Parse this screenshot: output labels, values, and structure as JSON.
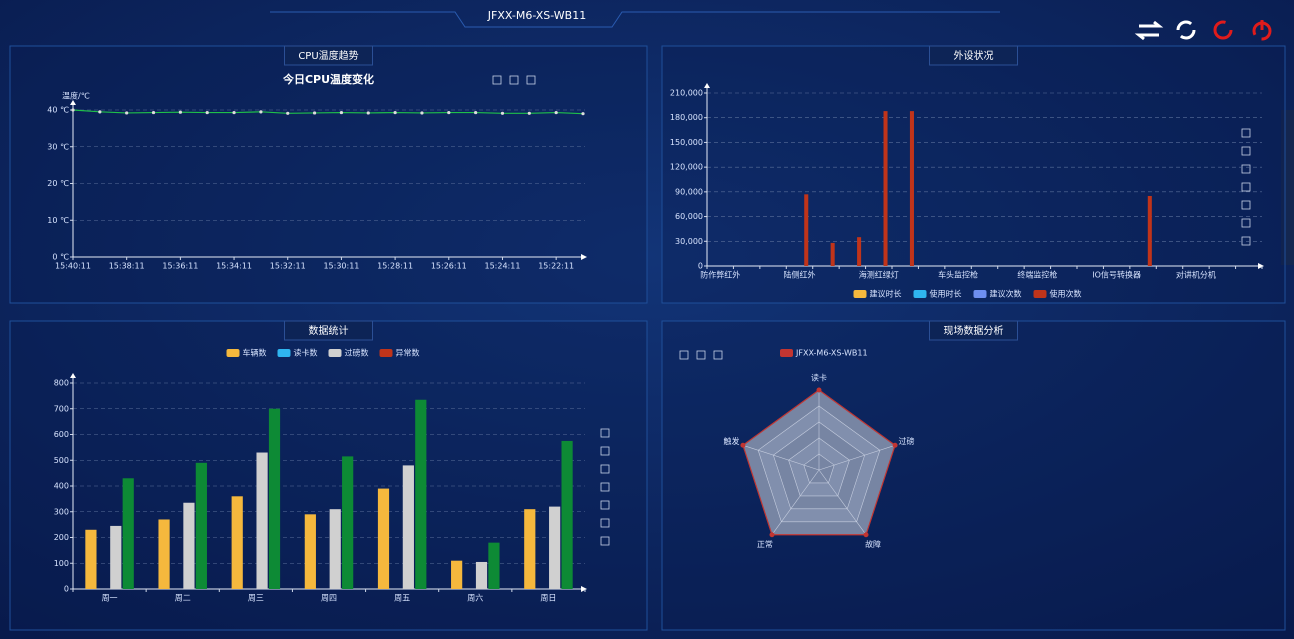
{
  "header": {
    "title": "JFXX-M6-XS-WB11"
  },
  "chart_data": [
    {
      "type": "line",
      "title": "CPU温度趋势",
      "subtitle": "今日CPU温度变化",
      "y_label": "温度/℃",
      "categories": [
        "15:40:11",
        null,
        "15:38:11",
        null,
        "15:36:11",
        null,
        "15:34:11",
        null,
        "15:32:11",
        null,
        "15:30:11",
        null,
        "15:28:11",
        null,
        "15:26:11",
        null,
        "15:24:11",
        null,
        "15:22:11",
        null
      ],
      "values": [
        40,
        39.5,
        39.2,
        39.3,
        39.4,
        39.3,
        39.3,
        39.5,
        39.1,
        39.2,
        39.3,
        39.2,
        39.3,
        39.2,
        39.3,
        39.3,
        39.1,
        39.1,
        39.3,
        39.0
      ],
      "color": "#1fbf4a",
      "ylim": [
        0,
        40
      ],
      "yticks": [
        {
          "value": 0,
          "label": "0 ℃"
        },
        {
          "value": 10,
          "label": "10 ℃"
        },
        {
          "value": 20,
          "label": "20 ℃"
        },
        {
          "value": 30,
          "label": "30 ℃"
        },
        {
          "value": 40,
          "label": "40 ℃"
        }
      ],
      "grid": true
    },
    {
      "type": "bar",
      "title": "外设状况",
      "categories": [
        "防作弊红外",
        null,
        null,
        "陆侧红外",
        null,
        null,
        "海测红绿灯",
        null,
        null,
        "车头监控枪",
        null,
        null,
        "终端监控枪",
        null,
        null,
        "IO信号转换器",
        null,
        null,
        "对讲机分机",
        null,
        null
      ],
      "series": [
        {
          "name": "建议时长",
          "color": "#f5b83d",
          "values": [
            0,
            0,
            0,
            0,
            0,
            0,
            0,
            0,
            0,
            0,
            0,
            0,
            0,
            0,
            0,
            0,
            0,
            0,
            0,
            0,
            0
          ]
        },
        {
          "name": "使用时长",
          "color": "#2fb5f0",
          "values": [
            0,
            0,
            0,
            0,
            0,
            0,
            0,
            0,
            0,
            0,
            0,
            0,
            0,
            0,
            0,
            0,
            0,
            0,
            0,
            0,
            0
          ]
        },
        {
          "name": "建议次数",
          "color": "#6e8ff0",
          "values": [
            0,
            0,
            0,
            0,
            0,
            0,
            0,
            0,
            0,
            0,
            0,
            0,
            0,
            0,
            0,
            0,
            0,
            0,
            0,
            0,
            0
          ]
        },
        {
          "name": "使用次数",
          "color": "#c0341a",
          "values": [
            0,
            0,
            0,
            87000,
            28000,
            35000,
            188000,
            188000,
            0,
            0,
            0,
            0,
            0,
            0,
            0,
            0,
            85000,
            0,
            0,
            0,
            0
          ]
        }
      ],
      "ylim": [
        0,
        210000
      ],
      "yticks": [
        0,
        {
          "value": 30000,
          "label": "30,000"
        },
        {
          "value": 60000,
          "label": "60,000"
        },
        {
          "value": 90000,
          "label": "90,000"
        },
        {
          "value": 120000,
          "label": "120,000"
        },
        {
          "value": 150000,
          "label": "150,000"
        },
        {
          "value": 180000,
          "label": "180,000"
        },
        {
          "value": 210000,
          "label": "210,000"
        }
      ],
      "grid": true,
      "legend": "bottom"
    },
    {
      "type": "bar",
      "title": "数据统计",
      "categories": [
        "周一",
        "周二",
        "周三",
        "周四",
        "周五",
        "周六",
        "周日"
      ],
      "series": [
        {
          "name": "车辆数",
          "color": "#f5b83d",
          "values": [
            230,
            270,
            360,
            290,
            390,
            110,
            310
          ]
        },
        {
          "name": "读卡数",
          "color": "#2fb5f0",
          "values": [
            0,
            0,
            0,
            0,
            0,
            0,
            0
          ]
        },
        {
          "name": "过磅数",
          "color": "#d0d0d0",
          "values": [
            245,
            335,
            530,
            310,
            480,
            105,
            320
          ]
        },
        {
          "name": "异常数",
          "color": "#c0341a",
          "bar_color": "#0d8a35",
          "values": [
            430,
            490,
            700,
            515,
            735,
            180,
            575
          ]
        }
      ],
      "ylim": [
        0,
        800
      ],
      "yticks": [
        0,
        100,
        200,
        300,
        400,
        500,
        600,
        700,
        800
      ],
      "grid": true,
      "legend": "top"
    },
    {
      "type": "radar",
      "title": "现场数据分析",
      "indicators": [
        "读卡",
        "过磅",
        "故障",
        "正常",
        "触发"
      ],
      "rlim": [
        0,
        100
      ],
      "series": [
        {
          "name": "JFXX-M6-XS-WB11",
          "color": "#c23531",
          "values": [
            100,
            100,
            100,
            100,
            100
          ]
        }
      ],
      "legend": "top-left"
    }
  ]
}
